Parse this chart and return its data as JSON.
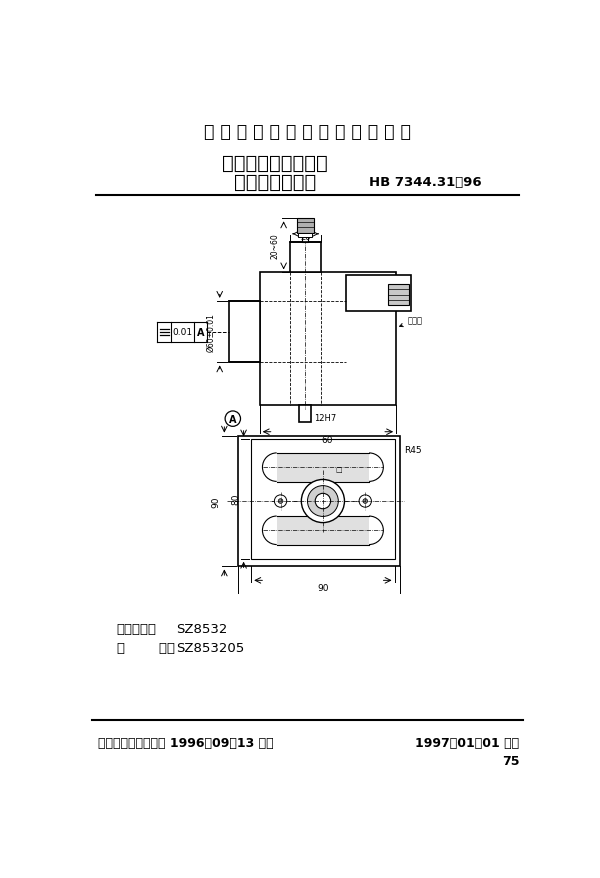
{
  "title_top": "中 华 人 民 共 和 国 航 空 工 业 标 准",
  "title_main1": "数控机床用夹具元件",
  "title_main2": "一阶定位压紧座",
  "standard_no": "HB 7344.31－96",
  "category_label": "分类代号：",
  "category_value": "SZ8532",
  "mark_label": "标        记：",
  "mark_value": "SZ853205",
  "footer_left": "中国航空工业总公司 1996－09－13 发布",
  "footer_right": "1997－01－01 实施",
  "page_number": "75",
  "bg_color": "#ffffff"
}
